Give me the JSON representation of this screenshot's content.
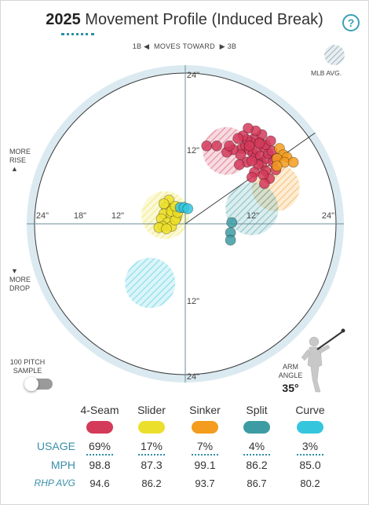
{
  "title": {
    "year": "2025",
    "text": "Movement Profile (Induced Break)"
  },
  "help_label": "?",
  "direction": {
    "left": "1B",
    "middle": "MOVES TOWARD",
    "right": "3B"
  },
  "mlb_legend": "MLB AVG.",
  "side_labels": {
    "rise_line1": "MORE",
    "rise_line2": "RISE",
    "drop_line1": "MORE",
    "drop_line2": "DROP"
  },
  "axis_labels": {
    "top24": "24\"",
    "top12": "12\"",
    "bottom12": "12\"",
    "bottom24": "24\"",
    "left24": "24\"",
    "left18": "18\"",
    "left12": "12\"",
    "right12": "12\"",
    "right24": "24\""
  },
  "sample_toggle": {
    "line1": "100 PITCH",
    "line2": "SAMPLE",
    "on": false
  },
  "arm_angle": {
    "line1": "ARM",
    "line2": "ANGLE",
    "value": "35°",
    "degrees": 35
  },
  "pitches": [
    {
      "name": "4-Seam",
      "color": "#d43a5a",
      "usage": "69%",
      "mph": "98.8",
      "rhp": "94.6"
    },
    {
      "name": "Slider",
      "color": "#ecdf2c",
      "usage": "17%",
      "mph": "87.3",
      "rhp": "86.2"
    },
    {
      "name": "Sinker",
      "color": "#f39c1e",
      "usage": "7%",
      "mph": "99.1",
      "rhp": "93.7"
    },
    {
      "name": "Split",
      "color": "#3d9ca3",
      "usage": "4%",
      "mph": "86.2",
      "rhp": "86.7"
    },
    {
      "name": "Curve",
      "color": "#35c6de",
      "usage": "3%",
      "mph": "85.0",
      "rhp": "80.2"
    }
  ],
  "row_labels": {
    "usage": "USAGE",
    "mph": "MPH",
    "rhp": "RHP AVG"
  },
  "chart_data": {
    "type": "scatter",
    "x_unit": "inches horizontal break (positive = toward 3B)",
    "y_unit": "inches induced vertical break",
    "xlim": [
      -24,
      24
    ],
    "ylim": [
      -24,
      24
    ],
    "rings": [
      6,
      12,
      18,
      24
    ],
    "series": [
      {
        "name": "4-Seam",
        "points": [
          [
            9,
            12
          ],
          [
            9.6,
            12.4
          ],
          [
            10.2,
            11.8
          ],
          [
            10.8,
            11.2
          ],
          [
            11.2,
            10.6
          ],
          [
            11.4,
            11.8
          ],
          [
            12,
            10.8
          ],
          [
            12.2,
            9.6
          ],
          [
            13,
            10.4
          ],
          [
            13.2,
            11.2
          ],
          [
            12.6,
            12.2
          ],
          [
            11.8,
            13
          ],
          [
            11,
            13.6
          ],
          [
            10.4,
            13
          ],
          [
            9.8,
            13.4
          ],
          [
            8.8,
            11
          ],
          [
            7.6,
            11.8
          ],
          [
            6.6,
            11.4
          ],
          [
            7,
            12.4
          ],
          [
            10.2,
            12.4
          ],
          [
            11.6,
            9.4
          ],
          [
            12.8,
            8.4
          ],
          [
            13.4,
            7.2
          ],
          [
            12.4,
            7.8
          ],
          [
            14,
            9.8
          ],
          [
            14.4,
            8.6
          ],
          [
            11,
            8.2
          ],
          [
            9.8,
            9.8
          ],
          [
            10.6,
            10
          ],
          [
            13.8,
            11.6
          ],
          [
            12.8,
            12.6
          ],
          [
            12.2,
            14.2
          ],
          [
            11.2,
            14.8
          ],
          [
            10,
            15.2
          ],
          [
            9.2,
            14
          ],
          [
            8.4,
            13.6
          ],
          [
            5,
            12.4
          ],
          [
            3.4,
            12.4
          ],
          [
            10.6,
            7.4
          ],
          [
            8.6,
            9.4
          ],
          [
            12.6,
            6.4
          ],
          [
            11.8,
            12.8
          ],
          [
            13.6,
            13.2
          ],
          [
            14.6,
            10.4
          ]
        ],
        "mlb_avg": {
          "x": 6.6,
          "y": 11.6,
          "r": 3.8
        }
      },
      {
        "name": "Slider",
        "points": [
          [
            -2.6,
            3.8
          ],
          [
            -3,
            2.6
          ],
          [
            -2,
            2.4
          ],
          [
            -3.4,
            1.6
          ],
          [
            -2.2,
            1.4
          ],
          [
            -3.8,
            0.8
          ],
          [
            -1.4,
            1
          ],
          [
            -2.8,
            0.2
          ],
          [
            -3.6,
            -0.4
          ],
          [
            -2.2,
            -0.4
          ],
          [
            -1.6,
            0.6
          ],
          [
            -4.2,
            -0.6
          ],
          [
            -3,
            -0.8
          ],
          [
            -2.2,
            2
          ],
          [
            -1.2,
            1.8
          ],
          [
            -3.4,
            3.2
          ],
          [
            -1.6,
            2.8
          ]
        ],
        "mlb_avg": {
          "x": -3.2,
          "y": 1.4,
          "r": 3.8
        }
      },
      {
        "name": "Sinker",
        "points": [
          [
            15,
            12
          ],
          [
            15.6,
            11
          ],
          [
            16.2,
            10.6
          ],
          [
            14.6,
            10.4
          ],
          [
            15.8,
            9.8
          ],
          [
            17.2,
            9.8
          ],
          [
            14.6,
            9.2
          ]
        ],
        "mlb_avg": {
          "x": 14.4,
          "y": 5.8,
          "r": 3.8
        }
      },
      {
        "name": "Split",
        "points": [
          [
            7.4,
            0.2
          ],
          [
            7.2,
            -1.4
          ],
          [
            7.2,
            -2.6
          ]
        ],
        "mlb_avg": {
          "x": 10.6,
          "y": 2.4,
          "r": 4.2
        }
      },
      {
        "name": "Curve",
        "points": [
          [
            -0.8,
            2.6
          ],
          [
            -0.2,
            2.6
          ],
          [
            0.4,
            2.4
          ]
        ],
        "mlb_avg": {
          "x": -5.6,
          "y": -9.4,
          "r": 4.0
        }
      }
    ]
  }
}
